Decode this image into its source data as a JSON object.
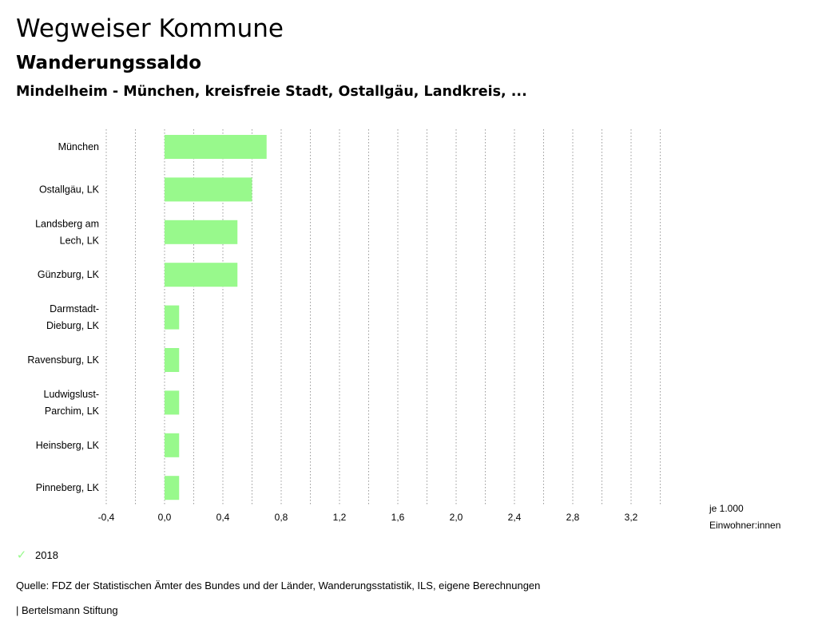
{
  "header": {
    "title": "Wegweiser Kommune",
    "subtitle": "Wanderungssaldo",
    "region": "Mindelheim - München, kreisfreie Stadt, Ostallgäu, Landkreis, ..."
  },
  "chart_data": {
    "type": "bar",
    "orientation": "horizontal",
    "categories": [
      "München",
      "Ostallgäu, LK",
      "Landsberg am Lech, LK",
      "Günzburg, LK",
      "Darmstadt-Dieburg, LK",
      "Ravensburg, LK",
      "Ludwigslust-Parchim, LK",
      "Heinsberg, LK",
      "Pinneberg, LK"
    ],
    "category_lines": [
      [
        "München"
      ],
      [
        "Ostallgäu, LK"
      ],
      [
        "Landsberg am",
        "Lech, LK"
      ],
      [
        "Günzburg, LK"
      ],
      [
        "Darmstadt-",
        "Dieburg, LK"
      ],
      [
        "Ravensburg, LK"
      ],
      [
        "Ludwigslust-",
        "Parchim, LK"
      ],
      [
        "Heinsberg, LK"
      ],
      [
        "Pinneberg, LK"
      ]
    ],
    "series": [
      {
        "name": "2018",
        "color": "#98f98c",
        "values": [
          0.7,
          0.6,
          0.5,
          0.5,
          0.1,
          0.1,
          0.1,
          0.1,
          0.1
        ]
      }
    ],
    "xlim": [
      -0.4,
      3.4
    ],
    "xticks": [
      -0.4,
      0.0,
      0.4,
      0.8,
      1.2,
      1.6,
      2.0,
      2.4,
      2.8,
      3.2
    ],
    "xtick_labels": [
      "-0,4",
      "0,0",
      "0,4",
      "0,8",
      "1,2",
      "1,6",
      "2,0",
      "2,4",
      "2,8",
      "3,2"
    ],
    "unit_lines": [
      "je 1.000",
      "Einwohner:innen"
    ],
    "grid": "dotted vertical"
  },
  "legend": {
    "label": "2018",
    "icon": "check-icon"
  },
  "footer": {
    "source": "Quelle: FDZ der Statistischen Ämter des Bundes und der Länder, Wanderungsstatistik, ILS, eigene Berechnungen",
    "publisher": "| Bertelsmann Stiftung"
  }
}
